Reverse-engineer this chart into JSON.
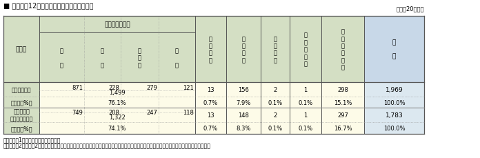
{
  "title": "■ 附属資料12　火災種別ごとの死者発生状況",
  "subtitle": "（平成20年中）",
  "header_bg_green": "#d4dfc4",
  "header_bg_blue": "#c8d8e8",
  "data_bg_yellow": "#fdfbe8",
  "data_bg_blue": "#dce8f0",
  "note_line1": "（備考）　1　「火災報告」により作成",
  "note_line2": "　　　　　2　火災が2種類以上にわたった場合、火災報告取扱要領の取扱いにかかわらず、死者が発生した方の火災種別により整理している。",
  "data": {
    "死者数_sub": [
      "871",
      "228",
      "279",
      "121"
    ],
    "死者数_subtotal": "1,499",
    "死者数_pct_sub": "76.1%",
    "死者数_others": [
      "13",
      "156",
      "2",
      "1",
      "298"
    ],
    "死者数_total": "1,969",
    "死者数_pct": [
      "0.7%",
      "7.9%",
      "0.1%",
      "0.1%",
      "15.1%",
      "100.0%"
    ],
    "火災件数_sub": [
      "749",
      "208",
      "247",
      "118"
    ],
    "火災件数_subtotal": "1,322",
    "火災件数_pct_sub": "74.1%",
    "火災件数_others": [
      "13",
      "148",
      "2",
      "1",
      "297"
    ],
    "火災件数_total": "1,783",
    "火災件数_pct": [
      "0.7%",
      "8.3%",
      "0.1%",
      "0.1%",
      "16.7%",
      "100.0%"
    ]
  }
}
